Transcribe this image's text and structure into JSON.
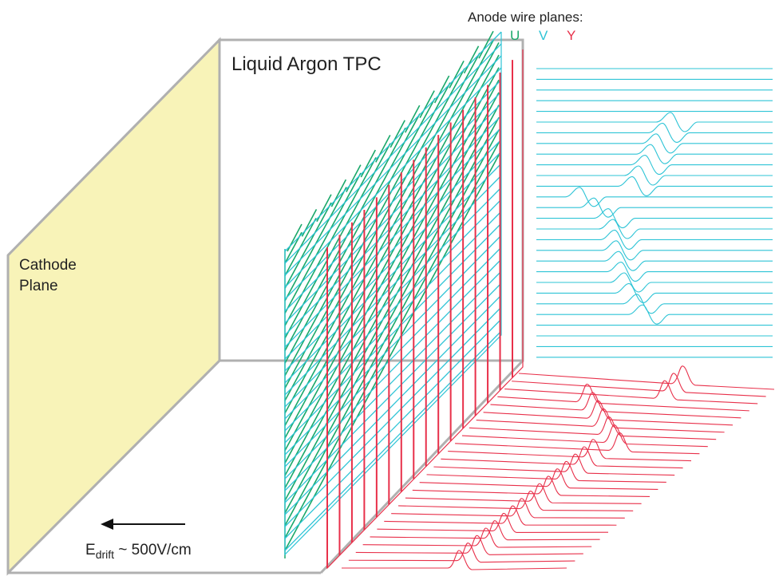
{
  "title": "Liquid Argon TPC",
  "cathode_label_line1": "Cathode",
  "cathode_label_line2": "Plane",
  "legend": {
    "heading": "Anode wire planes:",
    "planes": [
      {
        "key": "u",
        "label": "U",
        "color": "#1aa86a"
      },
      {
        "key": "v",
        "label": "V",
        "color": "#2ec4d6"
      },
      {
        "key": "y",
        "label": "Y",
        "color": "#e8304a"
      }
    ]
  },
  "field": {
    "symbol": "E",
    "subscript": "drift",
    "value": " ~ 500V/cm"
  },
  "colors": {
    "box_edge": "#b0b0b0",
    "cathode_fill": "#f8f3b8",
    "u_wire": "#1aa86a",
    "v_wire": "#2ec4d6",
    "y_wire": "#e8304a",
    "arrow": "#111111"
  }
}
